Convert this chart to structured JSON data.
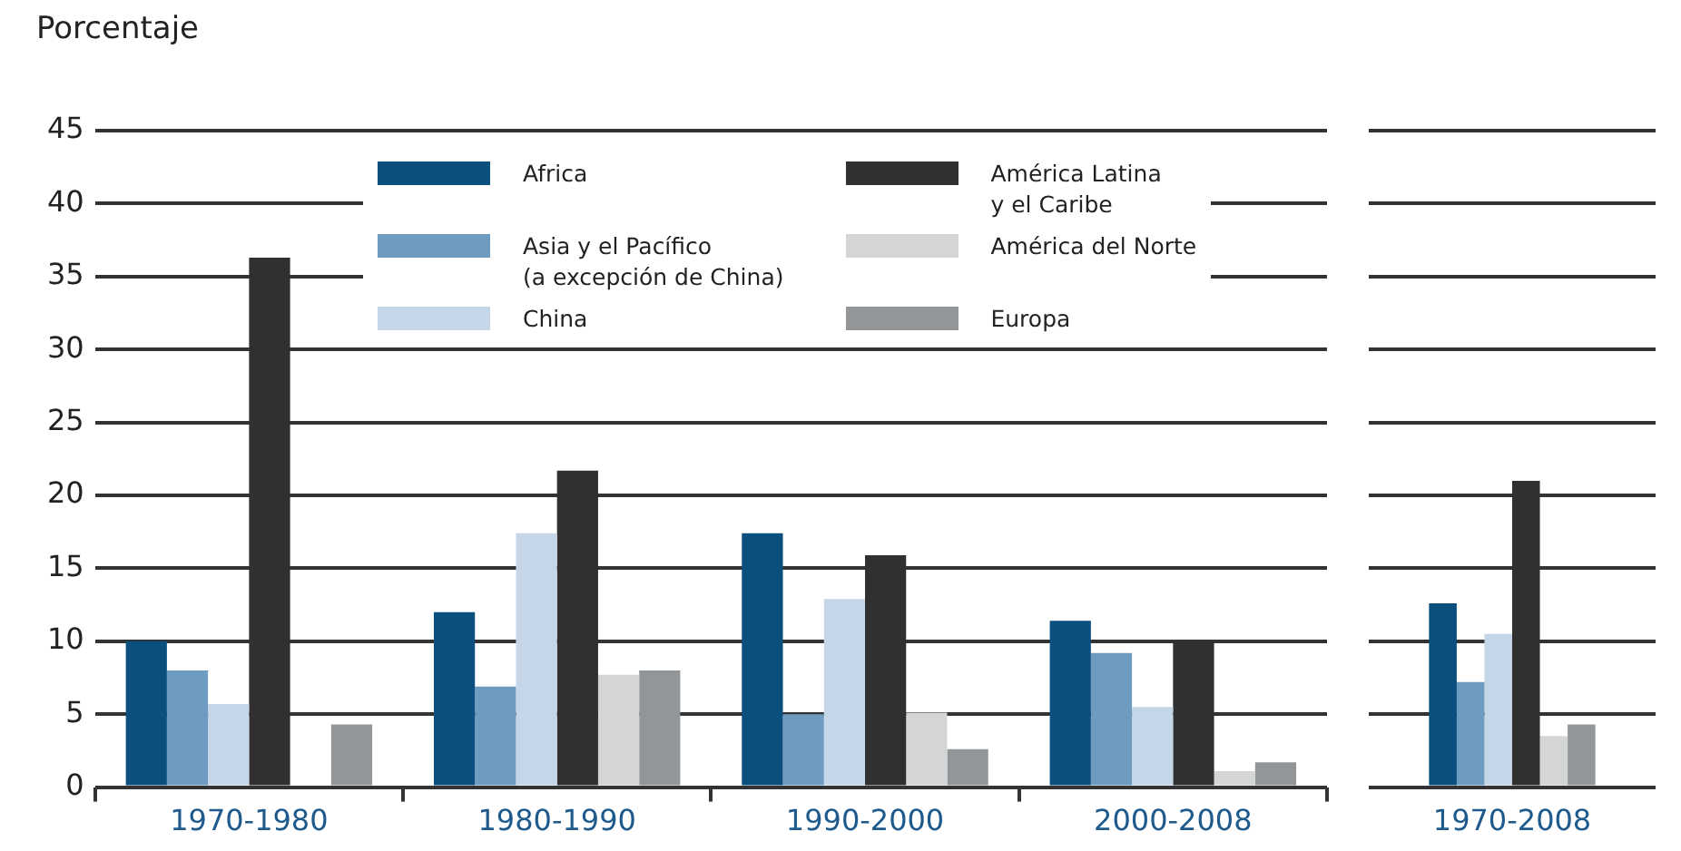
{
  "chart_data": [
    {
      "type": "bar",
      "ylabel": "Porcentaje",
      "categories": [
        "1970-1980",
        "1980-1990",
        "1990-2000",
        "2000-2008"
      ],
      "series": [
        {
          "name": "Africa",
          "color": "#0b4f7e",
          "values": [
            10,
            12,
            17.4,
            11.4
          ]
        },
        {
          "name": "Asia y el Pacífico\n(a excepción de China)",
          "color": "#6e9cc0",
          "values": [
            8,
            6.9,
            5,
            9.2
          ]
        },
        {
          "name": "China",
          "color": "#c5d6e8",
          "values": [
            5.7,
            17.4,
            12.9,
            5.5
          ]
        },
        {
          "name": "América Latina\ny el Caribe",
          "color": "#303030",
          "values": [
            36.3,
            21.7,
            15.9,
            10
          ]
        },
        {
          "name": "América del Norte",
          "color": "#d4d6d6",
          "values": [
            null,
            7.7,
            5.1,
            1.1
          ]
        },
        {
          "name": "Europa",
          "color": "#939699",
          "values": [
            4.3,
            8,
            2.6,
            1.7
          ]
        }
      ],
      "ylim": [
        0,
        45
      ],
      "yticks": [
        0,
        5,
        10,
        15,
        20,
        25,
        30,
        35,
        40,
        45
      ],
      "grid": "y",
      "legend": "top"
    },
    {
      "type": "bar",
      "categories": [
        "1970-2008"
      ],
      "series": [
        {
          "color": "#0b4f7e",
          "values": [
            12.6
          ]
        },
        {
          "color": "#6e9cc0",
          "values": [
            7.2
          ]
        },
        {
          "color": "#c5d6e8",
          "values": [
            10.5
          ]
        },
        {
          "color": "#303030",
          "values": [
            21
          ]
        },
        {
          "color": "#d4d6d6",
          "values": [
            3.5
          ]
        },
        {
          "color": "#939699",
          "values": [
            4.3
          ]
        }
      ],
      "ylim": [
        0,
        45
      ],
      "yticks": [
        0,
        5,
        10,
        15,
        20,
        25,
        30,
        35,
        40,
        45
      ],
      "grid": "y",
      "tick_labels": "x"
    }
  ]
}
